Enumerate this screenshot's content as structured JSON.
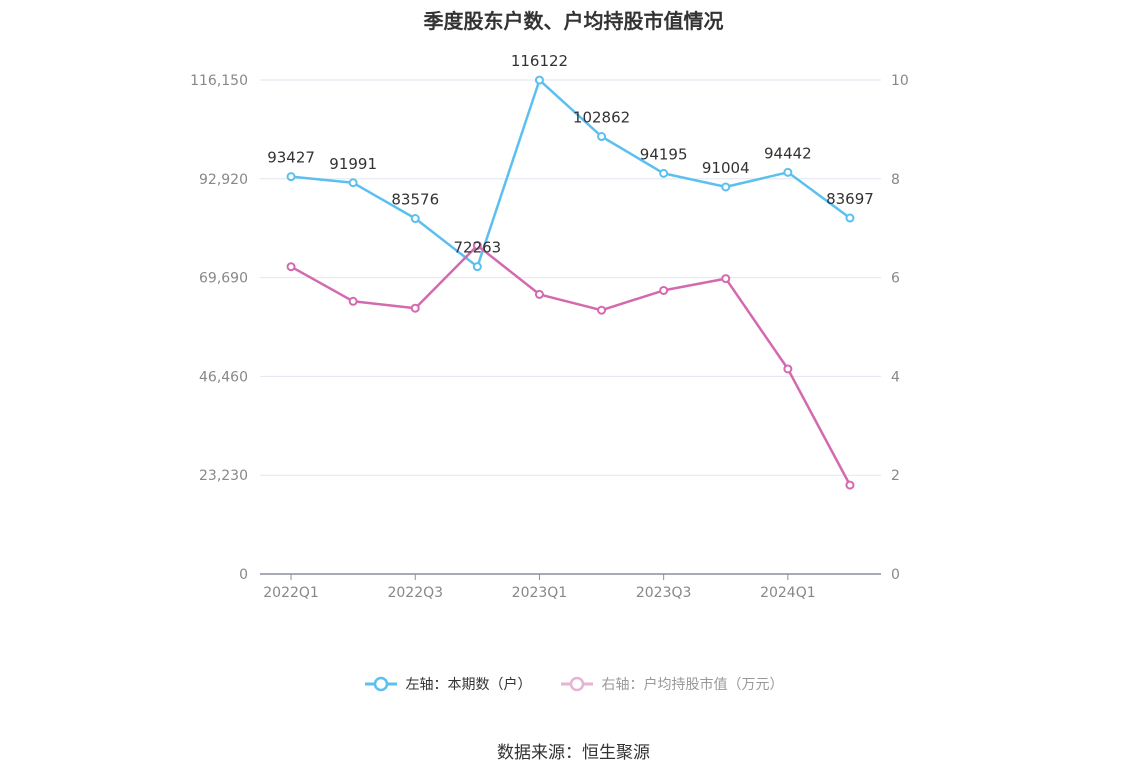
{
  "chart_data": {
    "type": "line",
    "title": "季度股东户数、户均持股市值情况",
    "categories": [
      "2022Q1",
      "2022Q2",
      "2022Q3",
      "2022Q4",
      "2023Q1",
      "2023Q2",
      "2023Q3",
      "2023Q4",
      "2024Q1",
      "2024Q2"
    ],
    "x_tick_labels": [
      "2022Q1",
      "2022Q3",
      "2023Q1",
      "2023Q3",
      "2024Q1"
    ],
    "y_left": {
      "range": [
        0,
        116150
      ],
      "ticks": [
        "0",
        "23,230",
        "46,460",
        "69,690",
        "92,920",
        "116,150"
      ]
    },
    "y_right": {
      "range": [
        0,
        10
      ],
      "ticks": [
        "0",
        "2",
        "4",
        "6",
        "8",
        "10"
      ]
    },
    "series": [
      {
        "name": "左轴：本期数（户）",
        "axis": "left",
        "color": "#5bc0f0",
        "values": [
          93427,
          91991,
          83576,
          72263,
          116122,
          102862,
          94195,
          91004,
          94442,
          83697
        ],
        "labels": [
          "93427",
          "91991",
          "83576",
          "72263",
          "116122",
          "102862",
          "94195",
          "91004",
          "94442",
          "83697"
        ]
      },
      {
        "name": "右轴：户均持股市值（万元）",
        "axis": "right",
        "color": "#d36aaf",
        "values": [
          6.22,
          5.52,
          5.38,
          6.65,
          5.66,
          5.34,
          5.74,
          5.98,
          4.15,
          1.8
        ]
      }
    ],
    "grid": true,
    "legend_position": "bottom"
  },
  "source": "数据来源：恒生聚源"
}
